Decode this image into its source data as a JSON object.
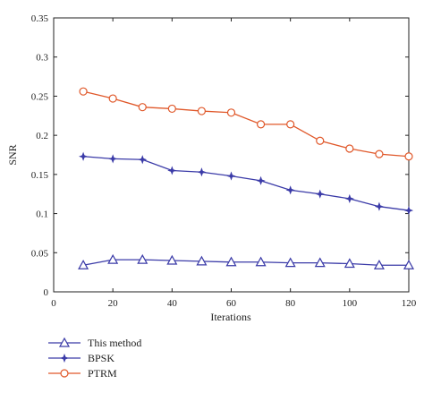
{
  "chart_data": {
    "type": "line",
    "title": "",
    "xlabel": "Iterations",
    "ylabel": "SNR",
    "xlim": [
      0,
      120
    ],
    "ylim": [
      0,
      0.35
    ],
    "xticks": [
      "0",
      "20",
      "40",
      "60",
      "80",
      "100",
      "120"
    ],
    "yticks": [
      "0",
      "0.05",
      "0.1",
      "0.15",
      "0.2",
      "0.25",
      "0.3",
      "0.35"
    ],
    "grid": false,
    "legend_position": "below",
    "x": [
      10,
      20,
      30,
      40,
      50,
      60,
      70,
      80,
      90,
      100,
      110,
      120
    ],
    "series": [
      {
        "name": "This method",
        "color": "#3b3ba8",
        "marker": "triangle",
        "values": [
          0.034,
          0.041,
          0.041,
          0.04,
          0.039,
          0.038,
          0.038,
          0.037,
          0.037,
          0.036,
          0.034,
          0.034
        ]
      },
      {
        "name": "BPSK",
        "color": "#3b3ba8",
        "marker": "star",
        "values": [
          0.173,
          0.17,
          0.169,
          0.155,
          0.153,
          0.148,
          0.142,
          0.13,
          0.125,
          0.119,
          0.109,
          0.104
        ]
      },
      {
        "name": "PTRM",
        "color": "#e0582a",
        "marker": "circle",
        "values": [
          0.256,
          0.247,
          0.236,
          0.234,
          0.231,
          0.229,
          0.214,
          0.214,
          0.193,
          0.183,
          0.176,
          0.173
        ]
      }
    ]
  }
}
